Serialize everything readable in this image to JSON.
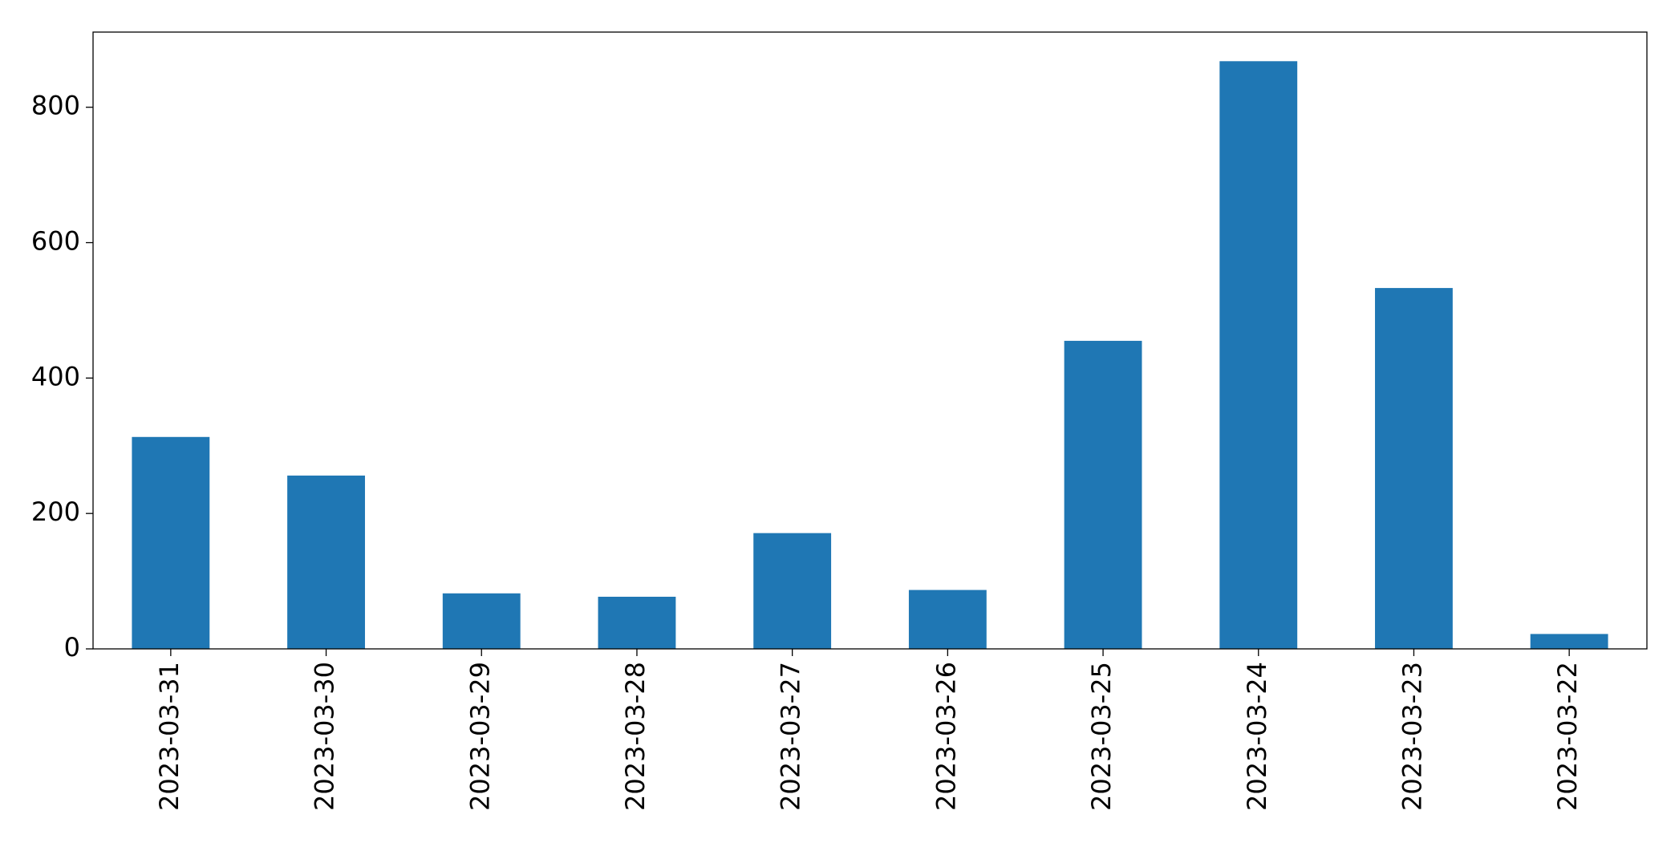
{
  "chart_data": {
    "type": "bar",
    "categories": [
      "2023-03-31",
      "2023-03-30",
      "2023-03-29",
      "2023-03-28",
      "2023-03-27",
      "2023-03-26",
      "2023-03-25",
      "2023-03-24",
      "2023-03-23",
      "2023-03-22"
    ],
    "values": [
      313,
      256,
      82,
      77,
      171,
      87,
      455,
      868,
      533,
      22
    ],
    "color": "#1f77b4",
    "ylim": [
      0,
      911
    ],
    "yticks": [
      0,
      200,
      400,
      600,
      800
    ],
    "grid": false
  }
}
